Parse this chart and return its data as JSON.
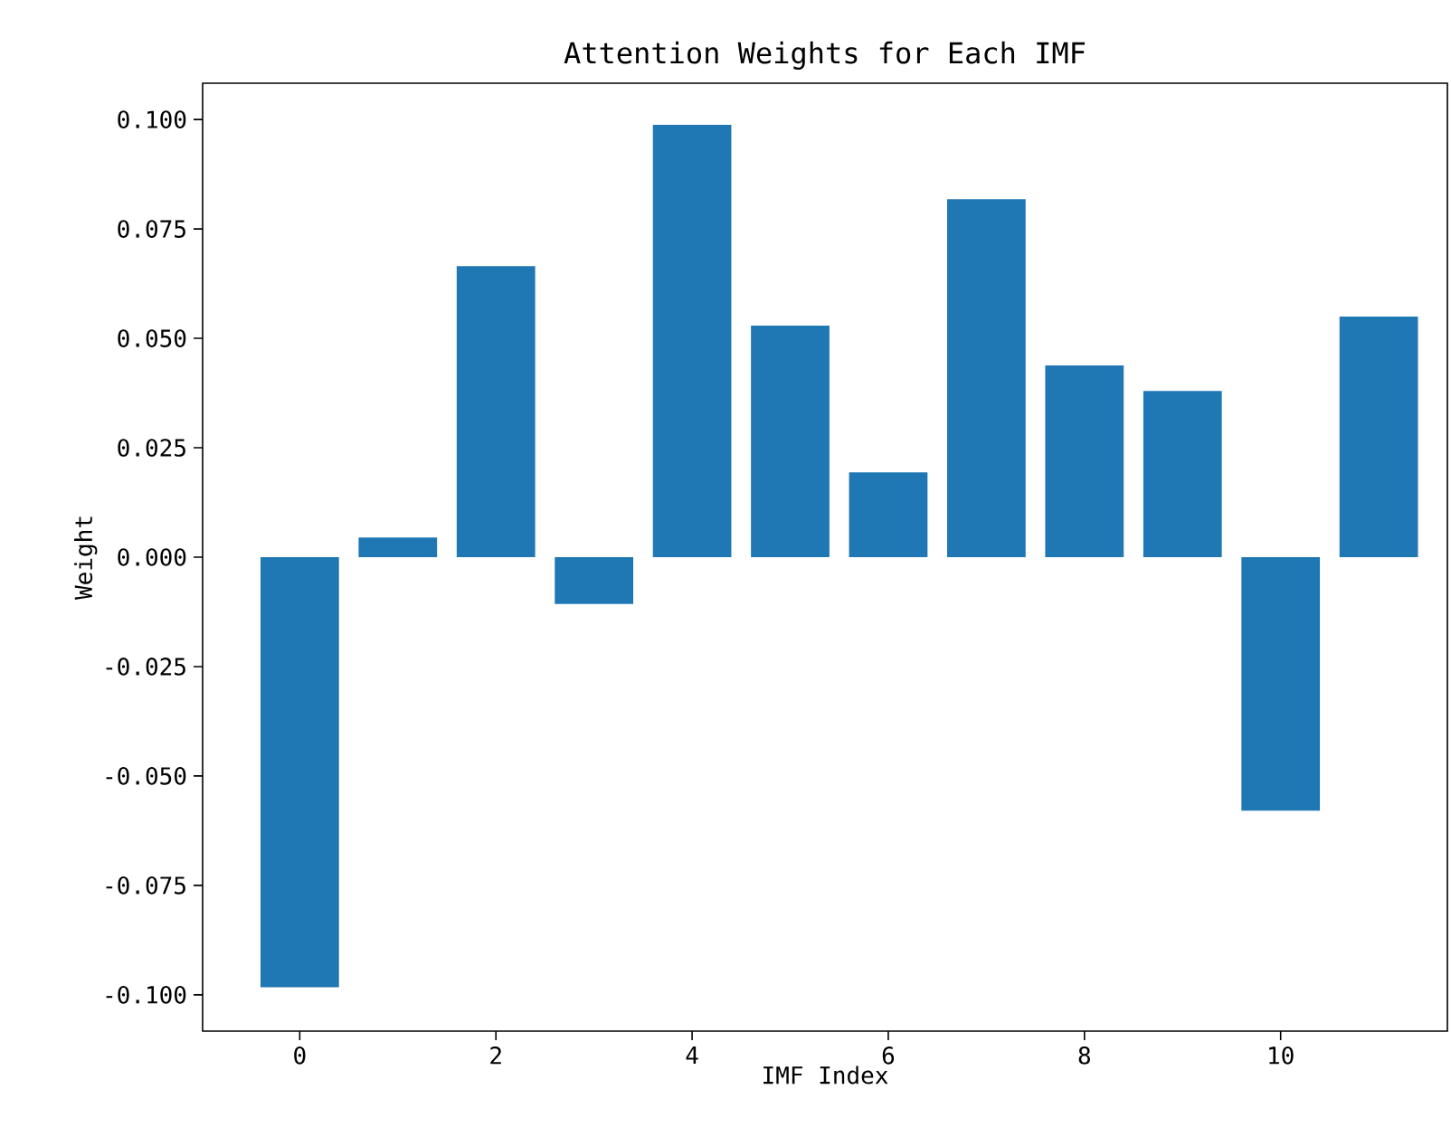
{
  "chart_data": {
    "type": "bar",
    "title": "Attention Weights for Each IMF",
    "xlabel": "IMF Index",
    "ylabel": "Weight",
    "x": [
      0,
      1,
      2,
      3,
      4,
      5,
      6,
      7,
      8,
      9,
      10,
      11
    ],
    "values": [
      -0.0983,
      0.0045,
      0.0665,
      -0.0107,
      0.0988,
      0.0529,
      0.0194,
      0.0818,
      0.0438,
      0.038,
      -0.0579,
      0.055
    ],
    "color": "#1f77b4",
    "xlim": [
      -0.99,
      11.7
    ],
    "ylim": [
      -0.1083,
      0.1083
    ],
    "xticks": [
      0,
      2,
      4,
      6,
      8,
      10
    ],
    "yticks": [
      {
        "value": -0.1,
        "label": "-0.100"
      },
      {
        "value": -0.075,
        "label": "-0.075"
      },
      {
        "value": -0.05,
        "label": "-0.050"
      },
      {
        "value": -0.025,
        "label": "-0.025"
      },
      {
        "value": 0,
        "label": "0.000"
      },
      {
        "value": 0.025,
        "label": "0.025"
      },
      {
        "value": 0.05,
        "label": "0.050"
      },
      {
        "value": 0.075,
        "label": "0.075"
      },
      {
        "value": 0.1,
        "label": "0.100"
      }
    ]
  }
}
